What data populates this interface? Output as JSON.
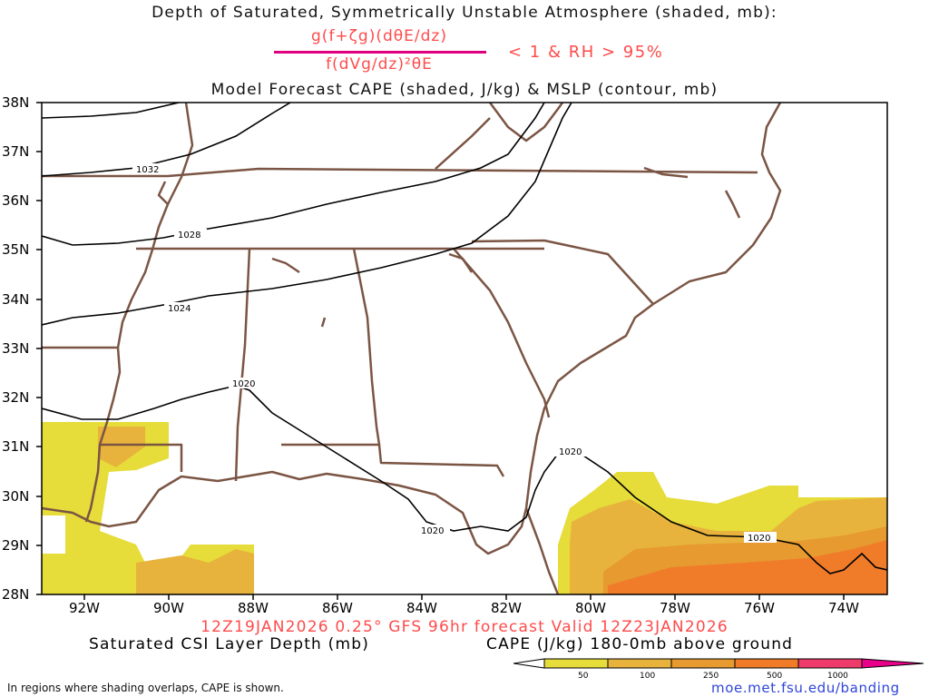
{
  "title_line1": "Depth of Saturated, Symmetrically Unstable Atmosphere (shaded, mb):",
  "criterion": {
    "numerator": "g(f+ζg)(dθE/dz)",
    "denominator": "f(dVg/dz)²θE",
    "condition": "< 1 & RH > 95%"
  },
  "title_line3": "Model Forecast CAPE (shaded, J/kg) & MSLP (contour, mb)",
  "map": {
    "lat_labels": [
      "38N",
      "37N",
      "36N",
      "35N",
      "34N",
      "33N",
      "32N",
      "31N",
      "30N",
      "29N",
      "28N"
    ],
    "lon_labels": [
      "92W",
      "90W",
      "88W",
      "86W",
      "84W",
      "82W",
      "80W",
      "78W",
      "76W",
      "74W"
    ],
    "lat_range": [
      28,
      38
    ],
    "lon_range": [
      -93,
      -73
    ],
    "mslp_contours": [
      "1032",
      "1028",
      "1024",
      "1020",
      "1020",
      "1020",
      "1020"
    ]
  },
  "valid_line": "12Z19JAN2026 0.25° GFS 96hr forecast Valid 12Z23JAN2026",
  "csi_label": "Saturated CSI Layer Depth (mb)",
  "cape_label": "CAPE (J/kg) 180-0mb above ground",
  "colorbar": {
    "ticks": [
      "50",
      "100",
      "250",
      "500",
      "1000"
    ],
    "colors": [
      "#e6dc3a",
      "#e8b33c",
      "#e69a2f",
      "#f07c2a",
      "#ef3b6b",
      "#e8008a"
    ]
  },
  "footnote": "In regions where shading overlaps, CAPE is shown.",
  "website": "moe.met.fsu.edu/banding",
  "colors": {
    "title_red": "#ff4b4b",
    "fraction_bar": "#e0007f",
    "border_brown": "#7b5544",
    "website_blue": "#2f45d8"
  }
}
